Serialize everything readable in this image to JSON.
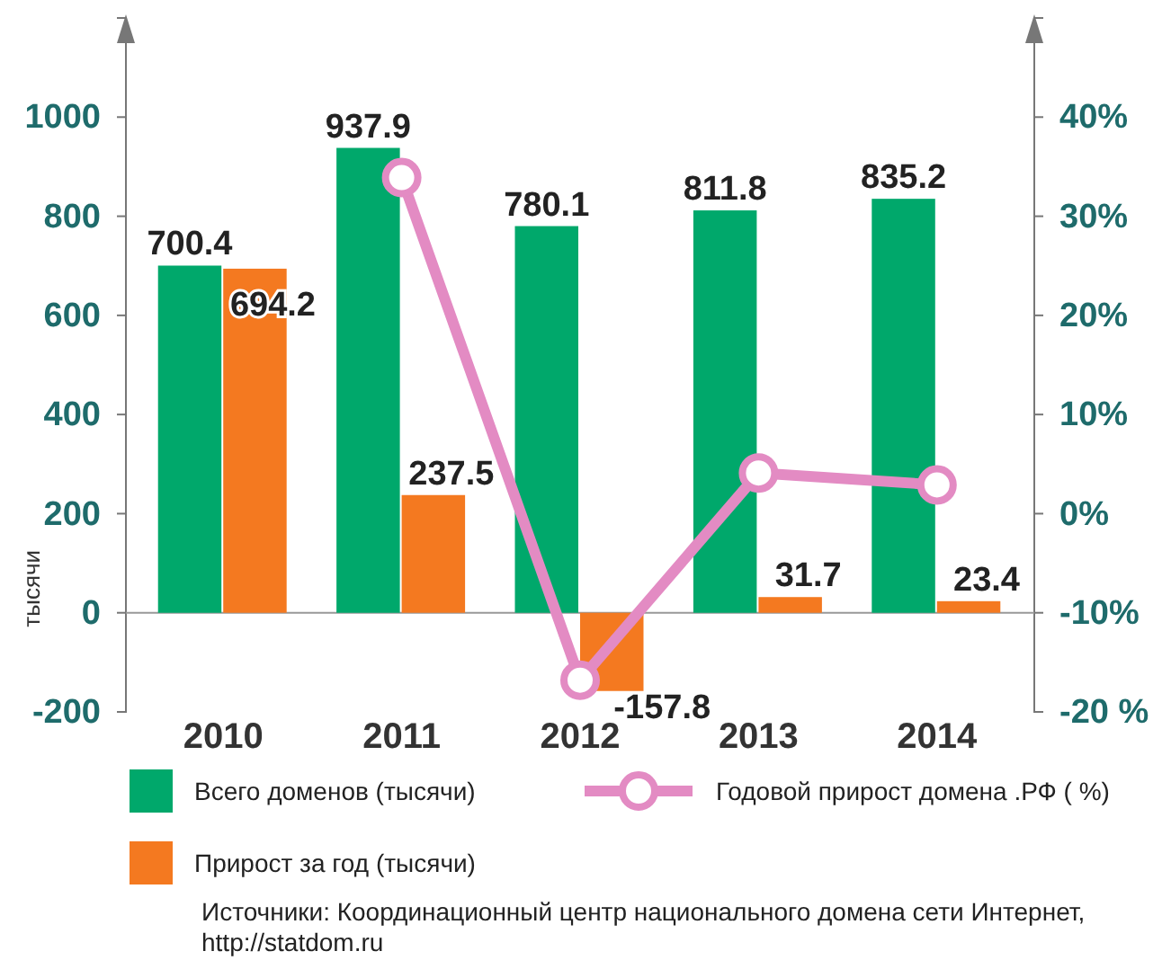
{
  "chart_data": {
    "type": "bar",
    "categories": [
      "2010",
      "2011",
      "2012",
      "2013",
      "2014"
    ],
    "ylabel": "тысячи",
    "ylim": [
      -200,
      1200
    ],
    "yticks": [
      -200,
      0,
      200,
      400,
      600,
      800,
      1000
    ],
    "y2lim": [
      -20,
      50
    ],
    "y2ticks": [
      {
        "value": -20,
        "label": "-20 %"
      },
      {
        "value": -10,
        "label": "-10%"
      },
      {
        "value": 0,
        "label": "0%"
      },
      {
        "value": 10,
        "label": "10%"
      },
      {
        "value": 20,
        "label": "20%"
      },
      {
        "value": 30,
        "label": "30%"
      },
      {
        "value": 40,
        "label": "40%"
      }
    ],
    "series": [
      {
        "name": "Всего доменов (тысячи)",
        "color": "#00a86b",
        "values": [
          700.4,
          937.9,
          780.1,
          811.8,
          835.2
        ],
        "value_labels": [
          "700.4",
          "937.9",
          "780.1",
          "811.8",
          "835.2"
        ]
      },
      {
        "name": "Прирост за год (тысячи)",
        "color": "#f47920",
        "values": [
          694.2,
          237.5,
          -157.8,
          31.7,
          23.4
        ],
        "value_labels": [
          "694.2",
          "237.5",
          "-157.8",
          "31.7",
          "23.4"
        ]
      },
      {
        "name": "Годовой прирост домена .РФ ( %)",
        "type": "line",
        "axis": "y2",
        "color": "#e38bc3",
        "marker": "circle",
        "values": [
          null,
          33.9,
          -16.8,
          4.1,
          2.9
        ]
      }
    ],
    "legend": "bottom",
    "annotations": [
      "Источники: Координационный центр  национального домена сети Интернет, http://statdom.ru"
    ]
  }
}
